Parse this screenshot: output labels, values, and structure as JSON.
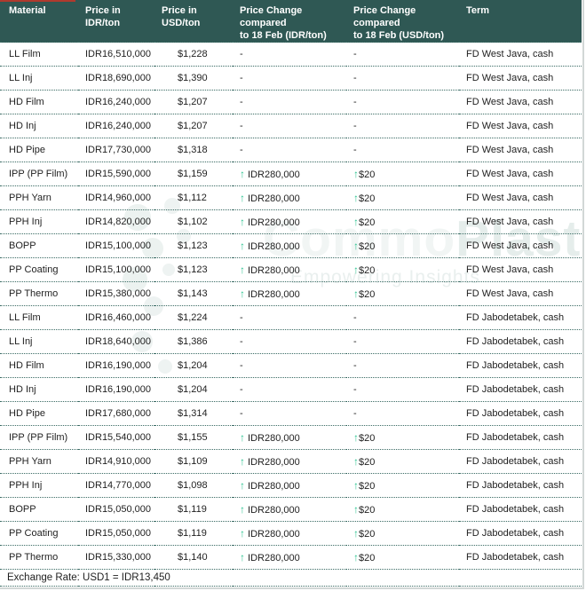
{
  "table": {
    "columns": [
      {
        "key": "material",
        "label": "Material"
      },
      {
        "key": "idr",
        "label": "Price in\nIDR/ton"
      },
      {
        "key": "usd",
        "label": "Price in\nUSD/ton"
      },
      {
        "key": "chg_idr",
        "label": "Price Change compared\nto 18 Feb (IDR/ton)"
      },
      {
        "key": "chg_usd",
        "label": "Price Change compared\nto 18 Feb (USD/ton)"
      },
      {
        "key": "term",
        "label": "Term"
      }
    ],
    "no_change_placeholder": "-",
    "rows": [
      {
        "material": "LL Film",
        "idr": "IDR16,510,000",
        "usd": "$1,228",
        "chg_idr": "-",
        "chg_usd": "-",
        "up": false,
        "term": "FD West Java, cash"
      },
      {
        "material": "LL Inj",
        "idr": "IDR18,690,000",
        "usd": "$1,390",
        "chg_idr": "-",
        "chg_usd": "-",
        "up": false,
        "term": "FD West Java, cash"
      },
      {
        "material": "HD Film",
        "idr": "IDR16,240,000",
        "usd": "$1,207",
        "chg_idr": "-",
        "chg_usd": "-",
        "up": false,
        "term": "FD West Java, cash"
      },
      {
        "material": "HD Inj",
        "idr": "IDR16,240,000",
        "usd": "$1,207",
        "chg_idr": "-",
        "chg_usd": "-",
        "up": false,
        "term": "FD West Java, cash"
      },
      {
        "material": "HD Pipe",
        "idr": "IDR17,730,000",
        "usd": "$1,318",
        "chg_idr": "-",
        "chg_usd": "-",
        "up": false,
        "term": "FD West Java, cash"
      },
      {
        "material": "IPP (PP Film)",
        "idr": "IDR15,590,000",
        "usd": "$1,159",
        "chg_idr": "IDR280,000",
        "chg_usd": "$20",
        "up": true,
        "term": "FD West Java, cash"
      },
      {
        "material": "PPH Yarn",
        "idr": "IDR14,960,000",
        "usd": "$1,112",
        "chg_idr": "IDR280,000",
        "chg_usd": "$20",
        "up": true,
        "term": "FD West Java, cash"
      },
      {
        "material": "PPH Inj",
        "idr": "IDR14,820,000",
        "usd": "$1,102",
        "chg_idr": "IDR280,000",
        "chg_usd": "$20",
        "up": true,
        "term": "FD West Java, cash"
      },
      {
        "material": "BOPP",
        "idr": "IDR15,100,000",
        "usd": "$1,123",
        "chg_idr": "IDR280,000",
        "chg_usd": "$20",
        "up": true,
        "term": "FD West Java, cash"
      },
      {
        "material": "PP Coating",
        "idr": "IDR15,100,000",
        "usd": "$1,123",
        "chg_idr": "IDR280,000",
        "chg_usd": "$20",
        "up": true,
        "term": "FD West Java, cash"
      },
      {
        "material": "PP Thermo",
        "idr": "IDR15,380,000",
        "usd": "$1,143",
        "chg_idr": "IDR280,000",
        "chg_usd": "$20",
        "up": true,
        "term": "FD West Java, cash"
      },
      {
        "material": "LL Film",
        "idr": "IDR16,460,000",
        "usd": "$1,224",
        "chg_idr": "-",
        "chg_usd": "-",
        "up": false,
        "term": "FD Jabodetabek, cash"
      },
      {
        "material": "LL Inj",
        "idr": "IDR18,640,000",
        "usd": "$1,386",
        "chg_idr": "-",
        "chg_usd": "-",
        "up": false,
        "term": "FD Jabodetabek, cash"
      },
      {
        "material": "HD Film",
        "idr": "IDR16,190,000",
        "usd": "$1,204",
        "chg_idr": "-",
        "chg_usd": "-",
        "up": false,
        "term": "FD Jabodetabek, cash"
      },
      {
        "material": "HD Inj",
        "idr": "IDR16,190,000",
        "usd": "$1,204",
        "chg_idr": "-",
        "chg_usd": "-",
        "up": false,
        "term": "FD Jabodetabek, cash"
      },
      {
        "material": "HD Pipe",
        "idr": "IDR17,680,000",
        "usd": "$1,314",
        "chg_idr": "-",
        "chg_usd": "-",
        "up": false,
        "term": "FD Jabodetabek, cash"
      },
      {
        "material": "IPP (PP Film)",
        "idr": "IDR15,540,000",
        "usd": "$1,155",
        "chg_idr": "IDR280,000",
        "chg_usd": "$20",
        "up": true,
        "term": "FD Jabodetabek, cash"
      },
      {
        "material": "PPH Yarn",
        "idr": "IDR14,910,000",
        "usd": "$1,109",
        "chg_idr": "IDR280,000",
        "chg_usd": "$20",
        "up": true,
        "term": "FD Jabodetabek, cash"
      },
      {
        "material": "PPH Inj",
        "idr": "IDR14,770,000",
        "usd": "$1,098",
        "chg_idr": "IDR280,000",
        "chg_usd": "$20",
        "up": true,
        "term": "FD Jabodetabek, cash"
      },
      {
        "material": "BOPP",
        "idr": "IDR15,050,000",
        "usd": "$1,119",
        "chg_idr": "IDR280,000",
        "chg_usd": "$20",
        "up": true,
        "term": "FD Jabodetabek, cash"
      },
      {
        "material": "PP Coating",
        "idr": "IDR15,050,000",
        "usd": "$1,119",
        "chg_idr": "IDR280,000",
        "chg_usd": "$20",
        "up": true,
        "term": "FD Jabodetabek, cash"
      },
      {
        "material": "PP Thermo",
        "idr": "IDR15,330,000",
        "usd": "$1,140",
        "chg_idr": "IDR280,000",
        "chg_usd": "$20",
        "up": true,
        "term": "FD Jabodetabek, cash"
      }
    ],
    "footer": "Exchange Rate: USD1 = IDR13,450"
  },
  "icons": {
    "up_arrow": "↑"
  },
  "watermark": {
    "brand": "CommoPlast",
    "brand_faint_part": "Commo",
    "brand_visible_part": "Plast",
    "tagline": "Empowering Insights"
  },
  "colors": {
    "header_bg": "#2F5854",
    "header_text": "#FFFFFF",
    "arrow_up_green": "#2FC492",
    "row_divider": "#3A6B64",
    "body_text": "#1F1F1F",
    "watermark_tint": "#ECF2F0",
    "top_marker_red": "#B03A2E"
  }
}
